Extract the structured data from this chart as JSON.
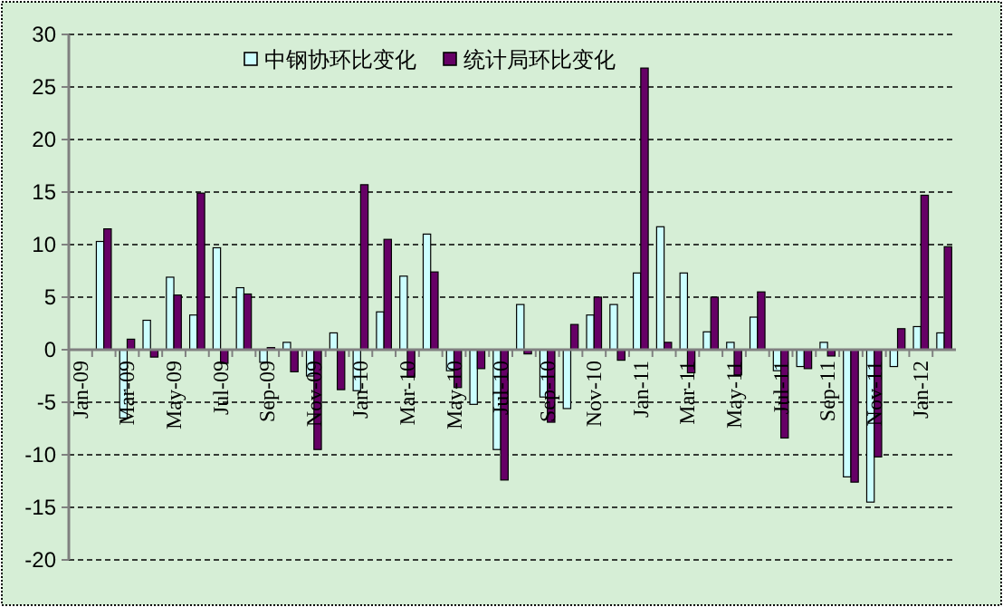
{
  "chart_data": {
    "type": "bar",
    "categories": [
      "Jan-09",
      null,
      "Mar-09",
      null,
      "May-09",
      null,
      "Jul-09",
      null,
      "Sep-09",
      null,
      "Nov-09",
      null,
      "Jan-10",
      null,
      "Mar-10",
      null,
      "May-10",
      null,
      "Jul-10",
      null,
      "Sep-10",
      null,
      "Nov-10",
      null,
      "Jan-11",
      null,
      "Mar-11",
      null,
      "May-11",
      null,
      "Jul-11",
      null,
      "Sep-11",
      null,
      "Nov-11",
      null,
      "Jan-12",
      null
    ],
    "series": [
      {
        "name": "中钢协环比变化",
        "color": "#ccffff",
        "values": [
          null,
          10.3,
          -6.5,
          2.8,
          6.9,
          3.3,
          9.7,
          5.9,
          -1.2,
          0.7,
          -2.5,
          1.6,
          -3.9,
          3.6,
          7.0,
          11.0,
          -2.0,
          -5.2,
          -9.5,
          4.3,
          -4.5,
          -5.6,
          3.3,
          4.3,
          7.3,
          11.7,
          7.3,
          1.7,
          0.7,
          3.1,
          -2.0,
          -1.6,
          0.7,
          -12.1,
          -14.5,
          -1.6,
          2.2,
          1.6
        ]
      },
      {
        "name": "统计局环比变化",
        "color": "#660066",
        "values": [
          null,
          11.5,
          1.0,
          -0.7,
          5.2,
          14.9,
          -1.3,
          5.3,
          0.2,
          -2.1,
          -9.5,
          -3.8,
          15.7,
          10.5,
          -2.6,
          7.4,
          -3.6,
          -1.8,
          -12.4,
          -0.4,
          -6.9,
          2.4,
          5.0,
          -1.0,
          26.8,
          0.7,
          -2.2,
          5.0,
          -2.4,
          5.5,
          -8.4,
          -1.8,
          -0.6,
          -12.6,
          -10.2,
          2.0,
          14.7,
          9.8
        ]
      }
    ],
    "ylim": [
      -20,
      30
    ],
    "yticks": [
      -20,
      -15,
      -10,
      -5,
      0,
      5,
      10,
      15,
      20,
      25,
      30
    ],
    "grid": "y",
    "legend": "top"
  }
}
